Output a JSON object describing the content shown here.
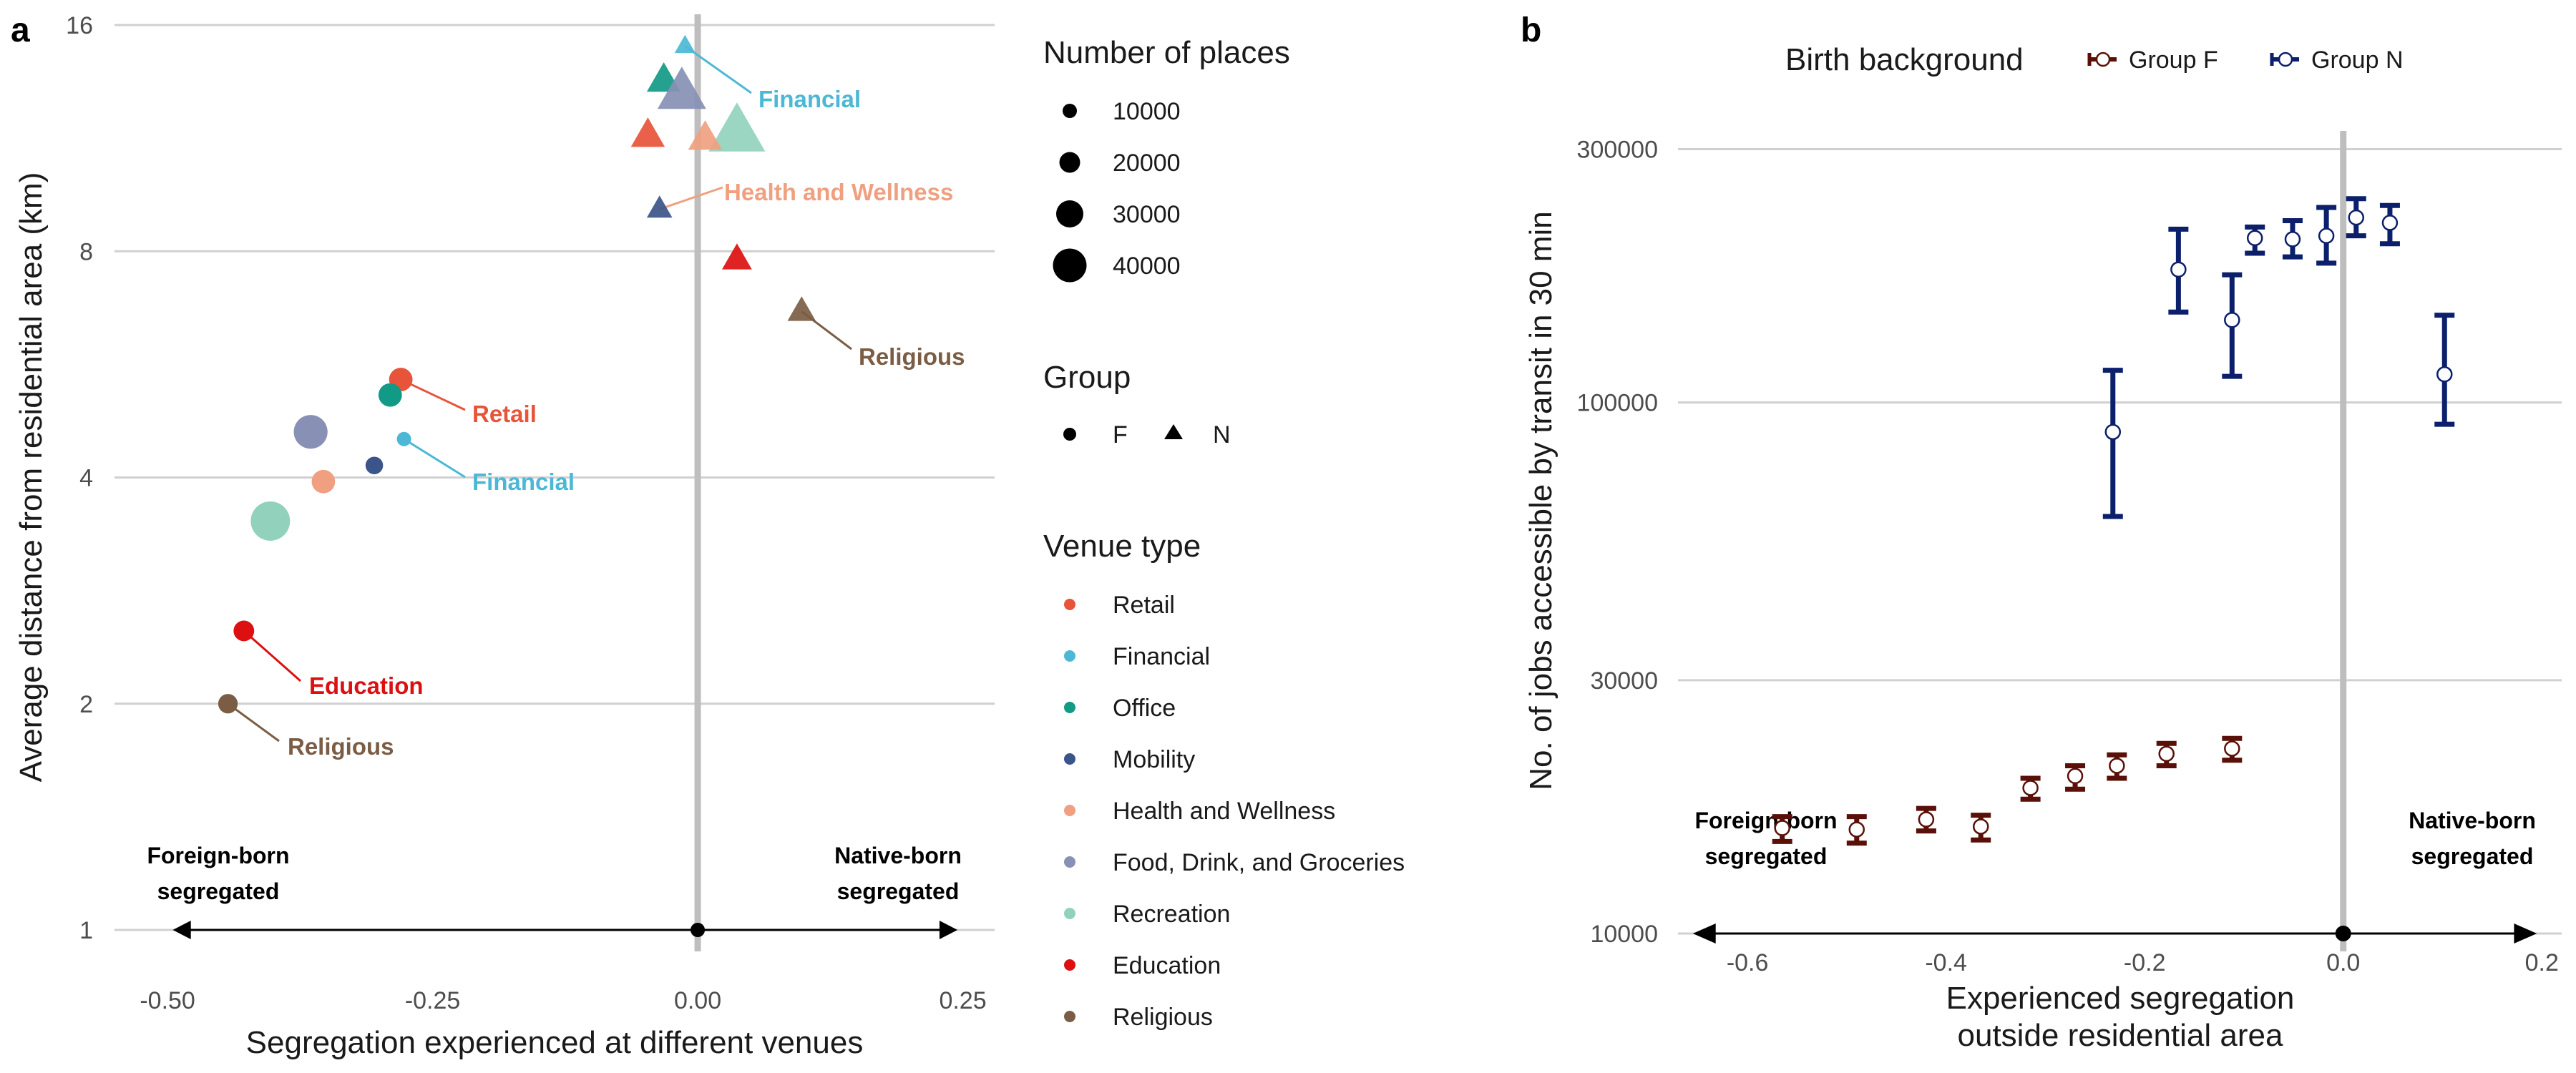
{
  "colors": {
    "Retail": "#e8543a",
    "Financial": "#4cb8d6",
    "Office": "#119a86",
    "Mobility": "#3b5489",
    "Health and Wellness": "#f0a080",
    "Food, Drink, and Groceries": "#8890b5",
    "Recreation": "#92d2bd",
    "Education": "#dc1010",
    "Religious": "#7b5d45",
    "groupF": "#5a1008",
    "groupN": "#0b1f6b",
    "grid": "#d0d0d0",
    "zero": "#bebebe"
  },
  "panel_a": {
    "label": "a",
    "xlabel": "Segregation experienced at different venues",
    "ylabel": "Average distance from residential area (km)",
    "left_note": [
      "Foreign-born",
      "segregated"
    ],
    "right_note": [
      "Native-born",
      "segregated"
    ]
  },
  "panel_b": {
    "label": "b",
    "xlabel": [
      "Experienced segregation",
      "outside residential area"
    ],
    "ylabel": "No. of jobs accessible by transit in 30 min",
    "left_note": [
      "Foreign-born",
      "segregated"
    ],
    "right_note": [
      "Native-born",
      "segregated"
    ],
    "legend_title": "Birth background",
    "legend_items": [
      "Group F",
      "Group N"
    ]
  },
  "legends_a": {
    "size_title": "Number of places",
    "size_items": [
      "10000",
      "20000",
      "30000",
      "40000"
    ],
    "group_title": "Group",
    "group_items": [
      "F",
      "N"
    ],
    "venue_title": "Venue type",
    "venue_items": [
      "Retail",
      "Financial",
      "Office",
      "Mobility",
      "Health and Wellness",
      "Food, Drink, and Groceries",
      "Recreation",
      "Education",
      "Religious"
    ]
  },
  "chart_data": [
    {
      "type": "scatter",
      "xlim": [
        -0.55,
        0.28
      ],
      "ylim": [
        1,
        16
      ],
      "y_scale": "log2",
      "x_ticks": [
        "-0.50",
        "-0.25",
        "0.00",
        "0.25"
      ],
      "x_tick_values": [
        -0.5,
        -0.25,
        0,
        0.25
      ],
      "y_ticks": [
        "1",
        "2",
        "4",
        "8",
        "16"
      ],
      "y_tick_values": [
        1,
        2,
        4,
        8,
        16
      ],
      "points": [
        {
          "venue": "Retail",
          "group": "F",
          "x": -0.28,
          "y": 5.4,
          "places": 8000
        },
        {
          "venue": "Office",
          "group": "F",
          "x": -0.29,
          "y": 5.15,
          "places": 8000
        },
        {
          "venue": "Food, Drink, and Groceries",
          "group": "F",
          "x": -0.365,
          "y": 4.6,
          "places": 25000
        },
        {
          "venue": "Financial",
          "group": "F",
          "x": -0.277,
          "y": 4.5,
          "places": 800
        },
        {
          "venue": "Mobility",
          "group": "F",
          "x": -0.305,
          "y": 4.15,
          "places": 2500
        },
        {
          "venue": "Health and Wellness",
          "group": "F",
          "x": -0.353,
          "y": 3.95,
          "places": 8000
        },
        {
          "venue": "Recreation",
          "group": "F",
          "x": -0.403,
          "y": 3.5,
          "places": 38000
        },
        {
          "venue": "Education",
          "group": "F",
          "x": -0.428,
          "y": 2.5,
          "places": 5000
        },
        {
          "venue": "Religious",
          "group": "F",
          "x": -0.443,
          "y": 2.0,
          "places": 4000
        },
        {
          "venue": "Financial",
          "group": "N",
          "x": -0.012,
          "y": 15.0,
          "places": 800
        },
        {
          "venue": "Office",
          "group": "N",
          "x": -0.032,
          "y": 13.5,
          "places": 8000
        },
        {
          "venue": "Food, Drink, and Groceries",
          "group": "N",
          "x": -0.015,
          "y": 13.0,
          "places": 25000
        },
        {
          "venue": "Recreation",
          "group": "N",
          "x": 0.037,
          "y": 11.5,
          "places": 38000
        },
        {
          "venue": "Retail",
          "group": "N",
          "x": -0.047,
          "y": 11.4,
          "places": 8000
        },
        {
          "venue": "Health and Wellness",
          "group": "N",
          "x": 0.007,
          "y": 11.3,
          "places": 8000
        },
        {
          "venue": "Mobility",
          "group": "N",
          "x": -0.036,
          "y": 9.1,
          "places": 2500
        },
        {
          "venue": "Education",
          "group": "N",
          "x": 0.037,
          "y": 7.8,
          "places": 5000
        },
        {
          "venue": "Religious",
          "group": "N",
          "x": 0.098,
          "y": 6.65,
          "places": 4000
        }
      ],
      "annotations": [
        {
          "text": "Financial",
          "venue": "Financial"
        },
        {
          "text": "Health and Wellness",
          "venue": "Health and Wellness"
        },
        {
          "text": "Religious",
          "venue": "Religious"
        },
        {
          "text": "Retail",
          "venue": "Retail"
        },
        {
          "text": "Financial",
          "venue": "Financial"
        },
        {
          "text": "Education",
          "venue": "Education"
        },
        {
          "text": "Religious",
          "venue": "Religious"
        }
      ]
    },
    {
      "type": "scatter",
      "error_bars": true,
      "xlim": [
        -0.67,
        0.22
      ],
      "ylim": [
        10000,
        420000
      ],
      "y_scale": "log10",
      "x_ticks": [
        "-0.6",
        "-0.4",
        "-0.2",
        "0.0",
        "0.2"
      ],
      "x_tick_values": [
        -0.6,
        -0.4,
        -0.2,
        0.0,
        0.2
      ],
      "y_ticks": [
        "10000",
        "30000",
        "100000",
        "300000"
      ],
      "y_tick_values": [
        10000,
        30000,
        100000,
        300000
      ],
      "series": [
        {
          "name": "Group F",
          "x": [
            -0.565,
            -0.49,
            -0.42,
            -0.365,
            -0.315,
            -0.27,
            -0.228,
            -0.178,
            -0.112
          ],
          "y": [
            15800,
            15700,
            16400,
            15900,
            18800,
            19800,
            20700,
            21800,
            22300
          ],
          "ylow": [
            14900,
            14800,
            15600,
            15000,
            17900,
            18700,
            19600,
            20700,
            21200
          ],
          "yhigh": [
            16600,
            16600,
            17200,
            16700,
            19600,
            20700,
            21700,
            22800,
            23300
          ]
        },
        {
          "name": "Group N",
          "x": [
            -0.232,
            -0.166,
            -0.112,
            -0.089,
            -0.051,
            -0.017,
            0.013,
            0.047,
            0.102
          ],
          "y": [
            88000,
            178000,
            143000,
            204000,
            203000,
            206000,
            223000,
            218000,
            113000
          ],
          "ylow": [
            61000,
            148000,
            112000,
            191000,
            188000,
            183000,
            206000,
            199000,
            91000
          ],
          "yhigh": [
            115000,
            212000,
            174000,
            214000,
            220000,
            233000,
            242000,
            235000,
            146000
          ]
        }
      ]
    }
  ]
}
